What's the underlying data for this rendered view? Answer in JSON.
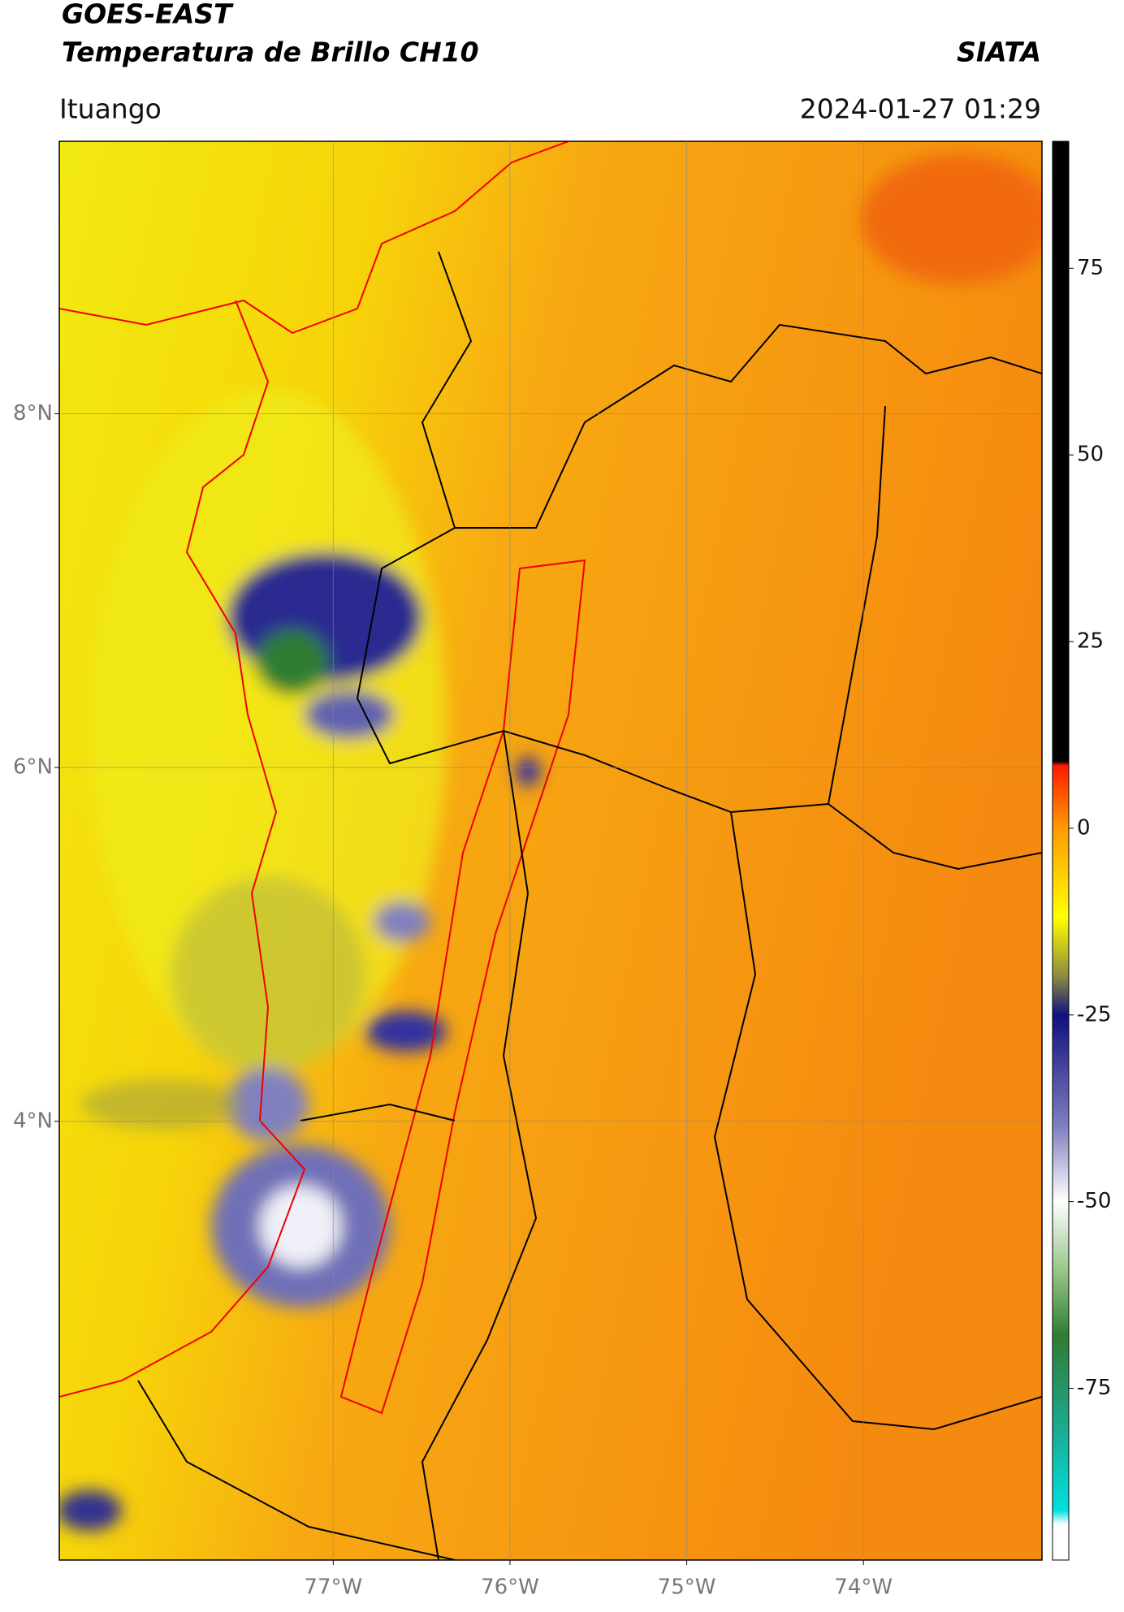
{
  "header": {
    "title": "GOES-EAST",
    "subtitle": "Temperatura de Brillo CH10",
    "source": "SIATA",
    "region": "Ituango",
    "datetime": "2024-01-27 01:29"
  },
  "map": {
    "lon_lim": [
      -78.55,
      -72.99
    ],
    "lat_lim": [
      1.52,
      9.54
    ],
    "lon_ticks": [
      {
        "value": -77,
        "label": "77°W"
      },
      {
        "value": -76,
        "label": "76°W"
      },
      {
        "value": -75,
        "label": "75°W"
      },
      {
        "value": -74,
        "label": "74°W"
      }
    ],
    "lat_ticks": [
      {
        "value": 8,
        "label": "8°N"
      },
      {
        "value": 6,
        "label": "6°N"
      },
      {
        "value": 4,
        "label": "4°N"
      }
    ]
  },
  "colorbar": {
    "lim": [
      -98,
      92
    ],
    "ticks": [
      75,
      50,
      25,
      0,
      -25,
      -50,
      -75
    ]
  }
}
